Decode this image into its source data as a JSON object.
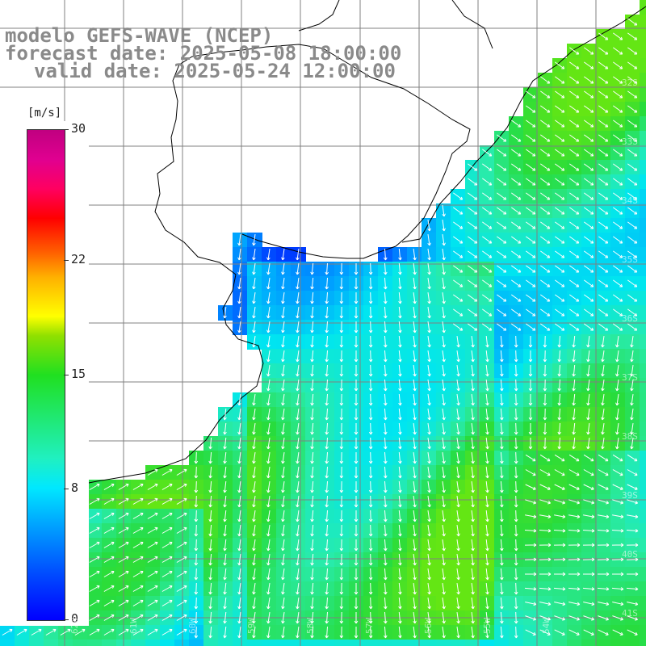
{
  "title": {
    "line1": "modelo GEFS-WAVE (NCEP)",
    "line2": "forecast date: 2025-05-08 18:00:00",
    "line3": "valid date: 2025-05-24 12:00:00"
  },
  "colorbar": {
    "unit": "[m/s]",
    "min": 0,
    "max": 30,
    "ticks": [
      "30",
      "22",
      "15",
      "8",
      "0"
    ],
    "tick_values": [
      30,
      22,
      15,
      8,
      0
    ]
  },
  "grid": {
    "lat_labels": [
      "32S",
      "33S",
      "34S",
      "35S",
      "36S",
      "37S",
      "38S",
      "39S",
      "40S",
      "41S"
    ],
    "lon_labels": [
      "62W",
      "61W",
      "60W",
      "59W",
      "58W",
      "57W",
      "56W",
      "55W",
      "54W"
    ]
  },
  "colors": {
    "land": "#ffffff",
    "grid": "#808080",
    "coast": "#000000",
    "arrows": "#ffffff"
  }
}
